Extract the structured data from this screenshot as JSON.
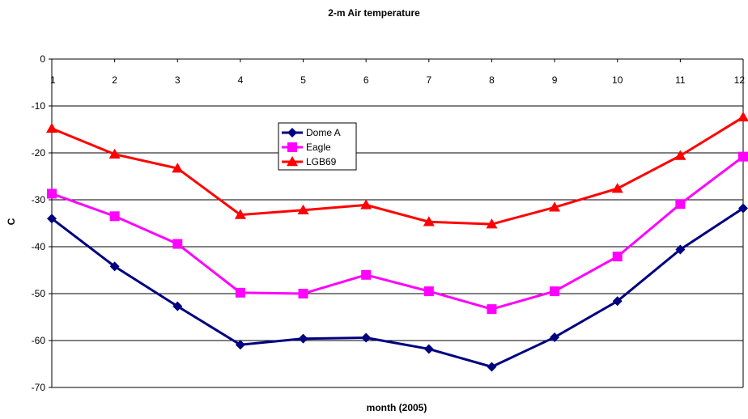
{
  "chart_data": {
    "type": "line",
    "title": "2-m Air temperature",
    "xlabel": "month (2005)",
    "ylabel": "C",
    "categories": [
      "1",
      "2",
      "3",
      "4",
      "5",
      "6",
      "7",
      "8",
      "9",
      "10",
      "11",
      "12"
    ],
    "ylim": [
      -70,
      0
    ],
    "yticks": [
      0,
      -10,
      -20,
      -30,
      -40,
      -50,
      -60,
      -70
    ],
    "grid": true,
    "legend_position": "upper-center",
    "series": [
      {
        "name": "Dome A",
        "color": "#000080",
        "marker": "diamond",
        "values": [
          -34,
          -44.2,
          -52.7,
          -60.9,
          -59.6,
          -59.4,
          -61.8,
          -65.6,
          -59.3,
          -51.6,
          -40.6,
          -31.8
        ]
      },
      {
        "name": "Eagle",
        "color": "#ff00ff",
        "marker": "square",
        "values": [
          -28.7,
          -33.5,
          -39.4,
          -49.8,
          -50,
          -46,
          -49.5,
          -53.3,
          -49.5,
          -42.1,
          -30.9,
          -20.8
        ]
      },
      {
        "name": "LGB69",
        "color": "#ff0000",
        "marker": "triangle",
        "values": [
          -14.8,
          -20.3,
          -23.3,
          -33.2,
          -32.2,
          -31.1,
          -34.7,
          -35.2,
          -31.6,
          -27.6,
          -20.6,
          -12.4
        ]
      }
    ]
  }
}
